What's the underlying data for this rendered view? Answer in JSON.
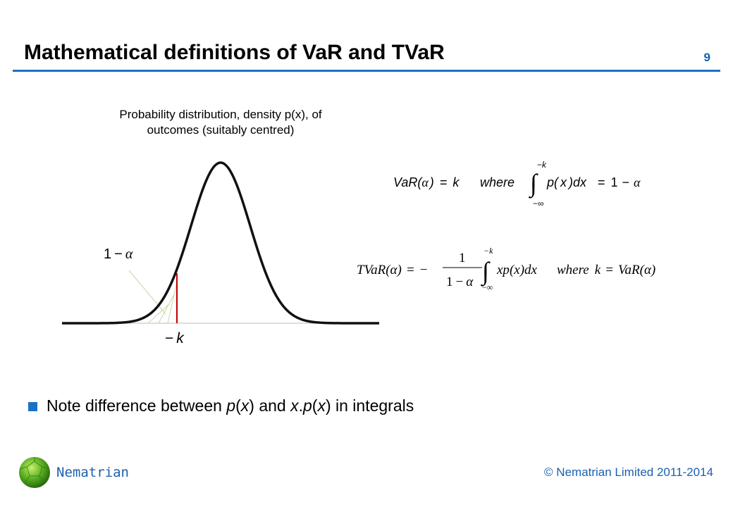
{
  "slide": {
    "title": "Mathematical definitions of VaR and TVaR",
    "page_number": "9"
  },
  "figure": {
    "caption_line1": "Probability distribution, density p(x), of",
    "caption_line2": "outcomes (suitably centred)",
    "label_tail": "1 − α",
    "label_k": "− k"
  },
  "formula_var": {
    "lhs": "VaR(α) = k",
    "where": "where",
    "upper_limit": "−k",
    "lower_limit": "−∞",
    "integrand": "p( x )dx",
    "rhs": "= 1 − α"
  },
  "formula_tvar": {
    "lhs": "TVaR(α) = −",
    "numerator": "1",
    "denominator": "1 − α",
    "upper_limit": "−k",
    "lower_limit": "−∞",
    "integrand": "xp(x)dx",
    "where_clause": "where k = VaR(α)"
  },
  "bullet": {
    "t1": "Note difference between ",
    "t2": "p",
    "t3": "(",
    "t4": "x",
    "t5": ") and ",
    "t6": "x",
    "t7": ".",
    "t8": "p",
    "t9": "(",
    "t10": "x",
    "t11": ") in integrals"
  },
  "footer": {
    "brand": "Nematrian",
    "copyright": "© Nematrian Limited 2011-2014"
  },
  "colors": {
    "accent": "#1a72c4",
    "footer_text": "#1a60b0",
    "cutoff_line": "#c00000",
    "hatch": "#c8d8a8"
  }
}
